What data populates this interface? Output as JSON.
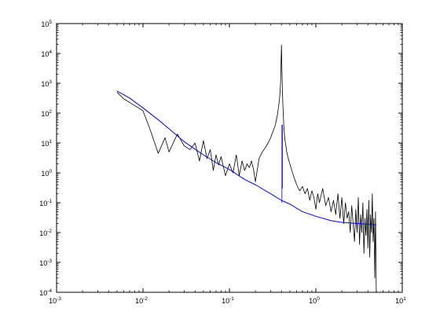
{
  "chart_data": {
    "type": "line",
    "xscale": "log",
    "yscale": "log",
    "xlim": [
      0.001,
      10
    ],
    "ylim": [
      0.0001,
      100000
    ],
    "grid": false,
    "legend": "none",
    "x_ticks": [
      {
        "value": 0.001,
        "base": "10",
        "exp": "-3"
      },
      {
        "value": 0.01,
        "base": "10",
        "exp": "-2"
      },
      {
        "value": 0.1,
        "base": "10",
        "exp": "-1"
      },
      {
        "value": 1,
        "base": "10",
        "exp": "0"
      },
      {
        "value": 10,
        "base": "10",
        "exp": "1"
      }
    ],
    "y_ticks": [
      {
        "value": 0.0001,
        "base": "10",
        "exp": "-4"
      },
      {
        "value": 0.001,
        "base": "10",
        "exp": "-3"
      },
      {
        "value": 0.01,
        "base": "10",
        "exp": "-2"
      },
      {
        "value": 0.1,
        "base": "10",
        "exp": "-1"
      },
      {
        "value": 1,
        "base": "10",
        "exp": "0"
      },
      {
        "value": 10,
        "base": "10",
        "exp": "1"
      },
      {
        "value": 100,
        "base": "10",
        "exp": "2"
      },
      {
        "value": 1000,
        "base": "10",
        "exp": "3"
      },
      {
        "value": 10000,
        "base": "10",
        "exp": "4"
      },
      {
        "value": 100000,
        "base": "10",
        "exp": "5"
      }
    ],
    "series": [
      {
        "color": "#000000",
        "style": "noisy-spectrum",
        "x": [
          0.005,
          0.006,
          0.008,
          0.01,
          0.012,
          0.015,
          0.018,
          0.02,
          0.025,
          0.03,
          0.035,
          0.04,
          0.045,
          0.05,
          0.055,
          0.06,
          0.065,
          0.07,
          0.075,
          0.08,
          0.09,
          0.1,
          0.11,
          0.12,
          0.13,
          0.14,
          0.15,
          0.16,
          0.17,
          0.18,
          0.19,
          0.2,
          0.22,
          0.24,
          0.26,
          0.28,
          0.3,
          0.32,
          0.34,
          0.36,
          0.38,
          0.39,
          0.4,
          0.405,
          0.41,
          0.415,
          0.42,
          0.425,
          0.43,
          0.44,
          0.45,
          0.46,
          0.48,
          0.5,
          0.55,
          0.6,
          0.65,
          0.7,
          0.75,
          0.8,
          0.85,
          0.9,
          0.95,
          1.0,
          1.05,
          1.1,
          1.2,
          1.3,
          1.4,
          1.5,
          1.6,
          1.7,
          1.8,
          1.9,
          2.0,
          2.1,
          2.2,
          2.3,
          2.4,
          2.5,
          2.6,
          2.7,
          2.8,
          2.9,
          3.0,
          3.1,
          3.2,
          3.3,
          3.4,
          3.5,
          3.6,
          3.7,
          3.8,
          3.9,
          4.0,
          4.1,
          4.2,
          4.3,
          4.4,
          4.5,
          4.6,
          4.7,
          4.8,
          4.9,
          5.0
        ],
        "y": [
          500,
          300,
          180,
          120,
          30,
          4.5,
          15,
          5,
          20,
          8,
          6,
          10,
          2.5,
          12,
          3,
          6,
          1.2,
          4,
          1.8,
          3.5,
          0.8,
          2.0,
          1.0,
          4.0,
          0.8,
          2.5,
          1.2,
          2.0,
          1.5,
          2.5,
          1.3,
          0.5,
          3.0,
          5.0,
          7.0,
          10.0,
          15.0,
          25.0,
          40.0,
          90.0,
          300.0,
          900.0,
          19000.0,
          3000.0,
          600.0,
          200.0,
          90.0,
          40.0,
          25.0,
          12.0,
          8.0,
          5.0,
          3.0,
          2.0,
          0.8,
          0.4,
          0.25,
          0.35,
          0.2,
          0.3,
          0.12,
          0.25,
          0.15,
          0.06,
          0.2,
          0.1,
          0.3,
          0.08,
          0.15,
          0.05,
          0.12,
          0.04,
          0.2,
          0.03,
          0.15,
          0.02,
          0.1,
          0.03,
          0.05,
          0.01,
          0.08,
          0.02,
          0.005,
          0.06,
          0.01,
          0.15,
          0.004,
          0.04,
          0.01,
          0.1,
          0.002,
          0.03,
          0.008,
          0.06,
          0.003,
          0.12,
          0.0015,
          0.04,
          0.01,
          0.2,
          0.005,
          0.03,
          0.0003,
          0.05,
          0.0001
        ]
      },
      {
        "color": "#0000ff",
        "style": "smooth-fit",
        "x": [
          0.005,
          0.007,
          0.01,
          0.015,
          0.02,
          0.03,
          0.05,
          0.07,
          0.1,
          0.15,
          0.2,
          0.3,
          0.4,
          0.5,
          0.7,
          1.0,
          1.5,
          2.0,
          3.0,
          4.0,
          5.0
        ],
        "y": [
          550,
          320,
          150,
          60,
          30,
          11,
          4,
          2.2,
          1.3,
          0.6,
          0.4,
          0.2,
          0.12,
          0.09,
          0.05,
          0.035,
          0.025,
          0.022,
          0.02,
          0.019,
          0.018
        ]
      },
      {
        "color": "#0000ff",
        "style": "spike",
        "x": [
          0.405,
          0.405,
          0.41,
          0.41
        ],
        "y": [
          0.1,
          40,
          40,
          0.3
        ]
      }
    ]
  }
}
